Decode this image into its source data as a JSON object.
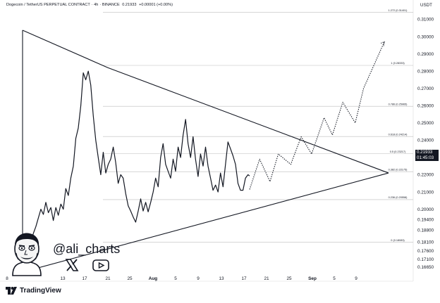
{
  "header": {
    "symbol": "Dogecoin / TetherUS PERPETUAL CONTRACT",
    "timeframe": "4h",
    "exchange": "BINANCE",
    "price": "0.21933",
    "change": "+0.00001 (+0.00%)"
  },
  "currency": "USDT",
  "price_badge": {
    "price": "0.21933",
    "countdown": "01:45:03"
  },
  "author": "@ali_charts",
  "social": {
    "x_icon": "x-logo-icon",
    "youtube_icon": "youtube-icon"
  },
  "brand": {
    "name": "TradingView",
    "logo_icon": "tradingview-logo-icon"
  },
  "avatar_icon": "cartoon-avatar-icon",
  "colors": {
    "line": "#131722",
    "background": "#ffffff",
    "grid": "#d7d7d7"
  },
  "chart_data": {
    "type": "line",
    "title": "",
    "xlabel": "",
    "ylabel": "",
    "y_axis_side": "right",
    "ylim": [
      0.1636,
      0.3155
    ],
    "y_ticks": [
      "0.31000",
      "0.30000",
      "0.29000",
      "0.28000",
      "0.27000",
      "0.26000",
      "0.25000",
      "0.24000",
      "0.23000",
      "0.22000",
      "0.21000",
      "0.20000",
      "0.19400",
      "0.18800",
      "0.18100",
      "0.17600",
      "0.17100",
      "0.16650"
    ],
    "x_ticks": [
      "8",
      "13",
      "17",
      "21",
      "25",
      "Aug",
      "5",
      "9",
      "13",
      "17",
      "21",
      "25",
      "Sep",
      "5",
      "9"
    ],
    "fib_levels": [
      {
        "label": "1.272 (0.31401)",
        "value": 0.31401
      },
      {
        "label": "1 (0.28333)",
        "value": 0.28333
      },
      {
        "label": "0.786 (0.25965)",
        "value": 0.25965
      },
      {
        "label": "0.618 (0.24214)",
        "value": 0.24214
      },
      {
        "label": "0.5 (0.23217)",
        "value": 0.23217
      },
      {
        "label": "0.382 (0.22175)",
        "value": 0.22175
      },
      {
        "label": "0.236 (0.20558)",
        "value": 0.20558
      },
      {
        "label": "0 (0.18083)",
        "value": 0.18083
      }
    ],
    "series": [
      {
        "name": "",
        "style": "solid",
        "x": [
          0,
          0.3,
          0.8,
          1.4,
          2.0,
          2.6,
          3.2,
          3.8,
          4.4,
          5.0,
          5.6,
          6.2,
          6.8,
          7.4,
          8.0,
          8.6,
          9.2,
          9.8,
          10.4,
          11.0,
          11.6,
          12.2,
          12.8,
          13.4,
          14.0,
          14.6,
          15.2,
          15.8,
          16.4,
          17.0,
          17.6,
          18.2,
          18.8,
          19.4,
          20.0,
          20.6,
          21.2,
          21.8,
          22.4,
          23.0,
          23.6,
          24.2,
          24.8,
          25.4,
          26.0,
          26.6,
          27.2,
          27.8,
          28.4,
          29.0,
          29.6,
          30.2,
          30.8,
          31.4,
          32.0,
          32.6,
          33.2,
          33.8,
          34.4,
          35.0,
          35.6,
          36.2,
          36.8,
          37.4,
          38.0,
          38.6,
          39.2,
          39.8,
          40.4,
          41.0,
          41.6,
          42.2,
          42.8,
          43.4,
          44.0,
          44.6,
          45.2,
          45.8,
          46.4,
          47.0,
          47.6,
          48.2,
          48.8,
          49.4,
          50.0,
          50.6,
          51.2,
          51.8,
          52.4,
          53.0,
          53.6,
          54.2,
          54.6
        ],
        "y": [
          0.166,
          0.168,
          0.17,
          0.176,
          0.18,
          0.186,
          0.19,
          0.195,
          0.2,
          0.197,
          0.204,
          0.198,
          0.201,
          0.1935,
          0.201,
          0.1965,
          0.203,
          0.2,
          0.212,
          0.208,
          0.218,
          0.225,
          0.241,
          0.247,
          0.26,
          0.279,
          0.275,
          0.28,
          0.272,
          0.254,
          0.24,
          0.23,
          0.22,
          0.233,
          0.221,
          0.226,
          0.229,
          0.236,
          0.227,
          0.215,
          0.22,
          0.218,
          0.209,
          0.202,
          0.199,
          0.1955,
          0.1925,
          0.199,
          0.206,
          0.199,
          0.204,
          0.1985,
          0.204,
          0.21,
          0.218,
          0.213,
          0.23,
          0.238,
          0.226,
          0.222,
          0.218,
          0.229,
          0.222,
          0.236,
          0.23,
          0.243,
          0.252,
          0.238,
          0.23,
          0.242,
          0.229,
          0.219,
          0.232,
          0.225,
          0.236,
          0.225,
          0.218,
          0.211,
          0.214,
          0.21,
          0.221,
          0.213,
          0.226,
          0.239,
          0.235,
          0.231,
          0.226,
          0.215,
          0.211,
          0.211,
          0.218,
          0.22,
          0.2193
        ]
      },
      {
        "name": "",
        "style": "dotted",
        "x": [
          54.6,
          57.0,
          59.5,
          61.5,
          64.5,
          67.0,
          69.5,
          72.5,
          74.5,
          77.0,
          80.0,
          82.0,
          87.0
        ],
        "y": [
          0.2115,
          0.229,
          0.216,
          0.232,
          0.226,
          0.242,
          0.232,
          0.253,
          0.243,
          0.262,
          0.25,
          0.27,
          0.297
        ]
      }
    ],
    "triangle": {
      "upper": {
        "x": [
          0,
          20.5,
          88
        ],
        "y": [
          0.3037,
          0.282,
          0.221
        ]
      },
      "lower": {
        "x": [
          0,
          88
        ],
        "y": [
          0.1636,
          0.221
        ]
      }
    },
    "grid": false,
    "legend": "none"
  }
}
